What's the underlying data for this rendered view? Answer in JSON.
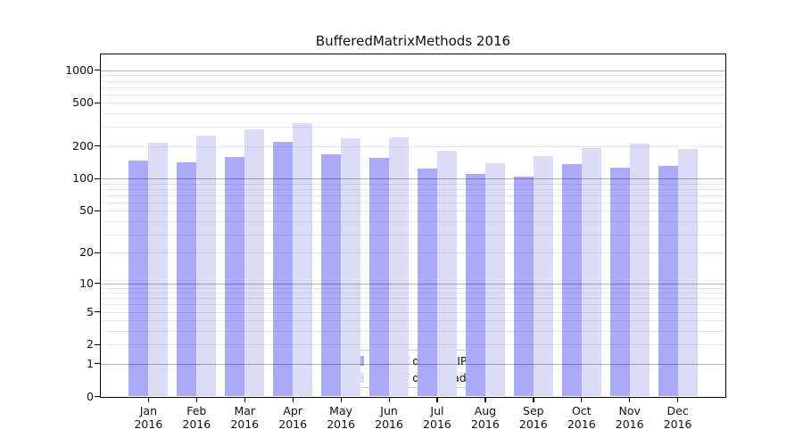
{
  "title": "BufferedMatrixMethods 2016",
  "chart_data": {
    "type": "bar",
    "title": "BufferedMatrixMethods 2016",
    "y_scale": "log10(value+1)",
    "ylim": [
      0,
      1400
    ],
    "y_ticks": [
      0,
      1,
      2,
      5,
      10,
      20,
      50,
      100,
      200,
      500,
      1000
    ],
    "grid": "major and minor horizontal gridlines",
    "legend_position": "lower center",
    "categories": [
      {
        "month": "Jan",
        "year": "2016"
      },
      {
        "month": "Feb",
        "year": "2016"
      },
      {
        "month": "Mar",
        "year": "2016"
      },
      {
        "month": "Apr",
        "year": "2016"
      },
      {
        "month": "May",
        "year": "2016"
      },
      {
        "month": "Jun",
        "year": "2016"
      },
      {
        "month": "Jul",
        "year": "2016"
      },
      {
        "month": "Aug",
        "year": "2016"
      },
      {
        "month": "Sep",
        "year": "2016"
      },
      {
        "month": "Oct",
        "year": "2016"
      },
      {
        "month": "Nov",
        "year": "2016"
      },
      {
        "month": "Dec",
        "year": "2016"
      }
    ],
    "series": [
      {
        "name": "Nb of distinct IPs",
        "color": "#aaaaf8",
        "values": [
          147,
          141,
          158,
          218,
          169,
          155,
          123,
          110,
          104,
          136,
          125,
          131
        ]
      },
      {
        "name": "Nb of downloads",
        "color": "#dcdcf8",
        "values": [
          216,
          252,
          284,
          325,
          235,
          243,
          180,
          138,
          162,
          191,
          212,
          189
        ]
      }
    ],
    "colors": {
      "grid_major": "rgba(0,0,0,0.30)",
      "grid_minor": "rgba(0,0,0,0.09)",
      "axis": "#000000",
      "legend_border": "#cccccc"
    }
  }
}
